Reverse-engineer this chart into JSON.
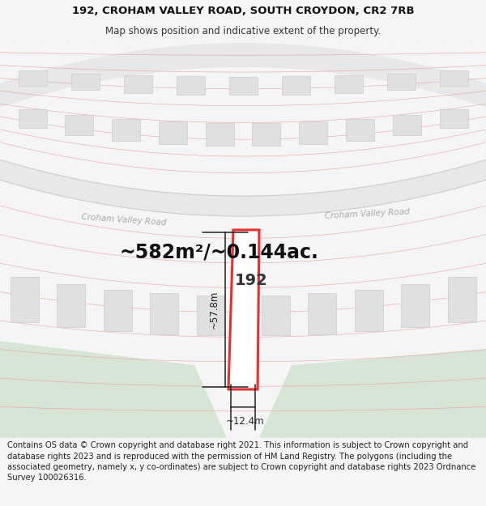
{
  "title_line1": "192, CROHAM VALLEY ROAD, SOUTH CROYDON, CR2 7RB",
  "title_line2": "Map shows position and indicative extent of the property.",
  "area_text": "~582m²/~0.144ac.",
  "label_192": "192",
  "dim_width": "~12.4m",
  "dim_height": "~57.8m",
  "road_label_left": "Croham Valley Road",
  "road_label_right": "Croham Valley Road",
  "footer_text": "Contains OS data © Crown copyright and database right 2021. This information is subject to Crown copyright and database rights 2023 and is reproduced with the permission of HM Land Registry. The polygons (including the associated geometry, namely x, y co-ordinates) are subject to Crown copyright and database rights 2023 Ordnance Survey 100026316.",
  "bg_color": "#f5f5f5",
  "map_bg": "#ffffff",
  "road_color": "#e8e8e8",
  "plot_line_color": "#e83030",
  "grid_line_color": "#f0a0a0",
  "parcel_border_color": "#e0c0c0",
  "building_fill": "#e0e0e0",
  "building_edge": "#cccccc",
  "green_area_color": "#d6e5d6",
  "title_fontsize": 9.5,
  "subtitle_fontsize": 8.5,
  "area_fontsize": 17,
  "footer_fontsize": 7.2,
  "road_label_color": "#aaaaaa",
  "dim_color": "#222222",
  "label_192_fontsize": 14
}
